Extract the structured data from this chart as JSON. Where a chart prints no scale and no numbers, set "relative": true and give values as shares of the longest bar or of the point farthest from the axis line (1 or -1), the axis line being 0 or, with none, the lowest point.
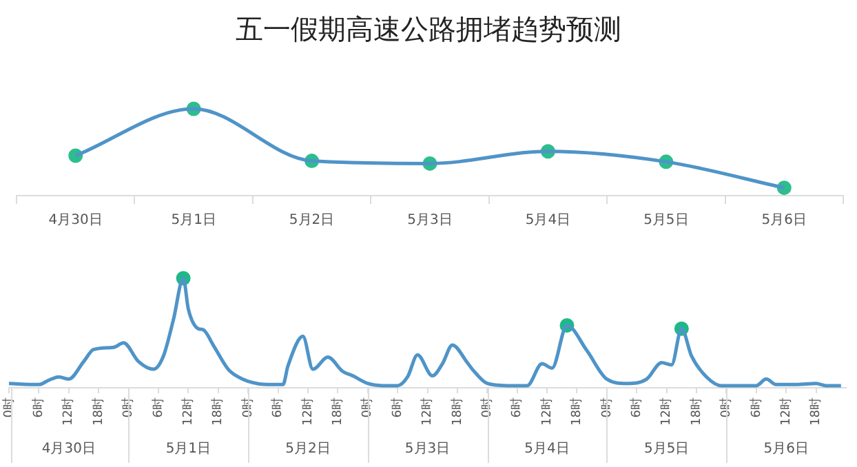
{
  "chart_data": [
    {
      "type": "line",
      "title": "五一假期高速公路拥堵趋势预测",
      "relative": true,
      "marker": "none",
      "categories": [
        "4月30日",
        "5月1日",
        "5月2日",
        "5月3日",
        "5月4日",
        "5月5日",
        "5月6日"
      ],
      "series": [
        {
          "color": "#4f94c8",
          "values": [
            0.46,
            1,
            0.4,
            0.37,
            0.51,
            0.39,
            0.09
          ]
        },
        {
          "type": "scatter",
          "marker": "circle",
          "color": "#2dbd8e",
          "x": [
            "4月30日",
            "5月1日",
            "5月2日",
            "5月3日",
            "5月4日",
            "5月5日",
            "5月6日"
          ],
          "values": [
            0.46,
            1,
            0.4,
            0.37,
            0.51,
            0.39,
            0.09
          ]
        }
      ]
    },
    {
      "type": "line",
      "relative": true,
      "marker": "none",
      "xlim": [
        "--04-30T00:00",
        "--05-07T00:00"
      ],
      "xticks": [
        {
          "value": "--04-30T00:00",
          "label": "0时"
        },
        {
          "value": "--04-30T06:00",
          "label": "6时"
        },
        {
          "value": "--04-30T12:00",
          "label": "12时"
        },
        {
          "value": "--04-30T18:00",
          "label": "18时"
        },
        {
          "value": "--05-01T00:00",
          "label": "0时"
        },
        {
          "value": "--05-01T06:00",
          "label": "6时"
        },
        {
          "value": "--05-01T12:00",
          "label": "12时"
        },
        {
          "value": "--05-01T18:00",
          "label": "18时"
        },
        {
          "value": "--05-02T00:00",
          "label": "0时"
        },
        {
          "value": "--05-02T06:00",
          "label": "6时"
        },
        {
          "value": "--05-02T12:00",
          "label": "12时"
        },
        {
          "value": "--05-02T18:00",
          "label": "18时"
        },
        {
          "value": "--05-03T00:00",
          "label": "0时"
        },
        {
          "value": "--05-03T06:00",
          "label": "6时"
        },
        {
          "value": "--05-03T12:00",
          "label": "12时"
        },
        {
          "value": "--05-03T18:00",
          "label": "18时"
        },
        {
          "value": "--05-04T00:00",
          "label": "0时"
        },
        {
          "value": "--05-04T06:00",
          "label": "6时"
        },
        {
          "value": "--05-04T12:00",
          "label": "12时"
        },
        {
          "value": "--05-04T18:00",
          "label": "18时"
        },
        {
          "value": "--05-05T00:00",
          "label": "0时"
        },
        {
          "value": "--05-05T06:00",
          "label": "6时"
        },
        {
          "value": "--05-05T12:00",
          "label": "12时"
        },
        {
          "value": "--05-05T18:00",
          "label": "18时"
        },
        {
          "value": "--05-06T00:00",
          "label": "0时"
        },
        {
          "value": "--05-06T06:00",
          "label": "6时"
        },
        {
          "value": "--05-06T12:00",
          "label": "12时"
        },
        {
          "value": "--05-06T18:00",
          "label": "18时"
        }
      ],
      "x2lim": [
        "--04-30T00:00",
        "--05-07T00:00"
      ],
      "x2ticks": [
        {
          "value": "--04-30T00:00",
          "label": null
        },
        {
          "value": "--04-30T12:00",
          "label": "4月30日"
        },
        {
          "value": "--05-01T00:00",
          "label": null
        },
        {
          "value": "--05-01T12:00",
          "label": "5月1日"
        },
        {
          "value": "--05-02T00:00",
          "label": null
        },
        {
          "value": "--05-02T12:00",
          "label": "5月2日"
        },
        {
          "value": "--05-03T00:00",
          "label": null
        },
        {
          "value": "--05-03T12:00",
          "label": "5月3日"
        },
        {
          "value": "--05-04T00:00",
          "label": null
        },
        {
          "value": "--05-04T12:00",
          "label": "5月4日"
        },
        {
          "value": "--05-05T00:00",
          "label": null
        },
        {
          "value": "--05-05T12:00",
          "label": "5月5日"
        },
        {
          "value": "--05-06T00:00",
          "label": null
        },
        {
          "value": "--05-06T12:00",
          "label": "5月6日"
        }
      ],
      "series": [
        {
          "color": "#4f94c8",
          "x": [
            "--04-30T00:00",
            "--04-30T06:00",
            "--04-30T08:00",
            "--04-30T10:00",
            "--04-30T12:00",
            "--04-30T15:00",
            "--04-30T17:00",
            "--04-30T21:00",
            "--04-30T23:00",
            "--05-01T02:00",
            "--05-01T05:00",
            "--05-01T07:00",
            "--05-01T09:00",
            "--05-01T11:00",
            "--05-01T12:00",
            "--05-01T14:00",
            "--05-01T15:00",
            "--05-01T17:00",
            "--05-01T20:00",
            "--05-01T22:00",
            "--05-02T00:00",
            "--05-02T04:00",
            "--05-02T07:00",
            "--05-02T08:00",
            "--05-02T11:00",
            "--05-02T13:00",
            "--05-02T16:00",
            "--05-02T19:00",
            "--05-02T21:00",
            "--05-03T00:00",
            "--05-03T03:00",
            "--05-03T06:00",
            "--05-03T08:00",
            "--05-03T10:00",
            "--05-03T13:00",
            "--05-03T15:00",
            "--05-03T17:00",
            "--05-03T20:00",
            "--05-03T21:00",
            "--05-04T00:00",
            "--05-04T04:00",
            "--05-04T08:00",
            "--05-04T11:00",
            "--05-04T13:00",
            "--05-04T16:00",
            "--05-04T20:00",
            "--05-05T00:00",
            "--05-05T04:00",
            "--05-05T08:00",
            "--05-05T11:00",
            "--05-05T13:00",
            "--05-05T15:00",
            "--05-05T17:00",
            "--05-05T20:00",
            "--05-05T23:00",
            "--05-06T06:00",
            "--05-06T08:00",
            "--05-06T10:00",
            "--05-06T14:00",
            "--05-06T18:00",
            "--05-06T20:00",
            "--05-06T23:00"
          ],
          "values": [
            0.04,
            0.03,
            0.07,
            0.1,
            0.08,
            0.24,
            0.35,
            0.37,
            0.41,
            0.24,
            0.17,
            0.29,
            0.62,
            1,
            0.72,
            0.54,
            0.53,
            0.39,
            0.17,
            0.1,
            0.06,
            0.03,
            0.03,
            0.2,
            0.47,
            0.17,
            0.28,
            0.15,
            0.11,
            0.04,
            0.02,
            0.02,
            0.1,
            0.3,
            0.11,
            0.22,
            0.39,
            0.23,
            0.17,
            0.04,
            0.02,
            0.02,
            0.22,
            0.18,
            0.57,
            0.34,
            0.08,
            0.04,
            0.08,
            0.23,
            0.21,
            0.54,
            0.29,
            0.1,
            0.02,
            0.02,
            0.08,
            0.03,
            0.03,
            0.04,
            0.02,
            0.02
          ]
        },
        {
          "type": "scatter",
          "marker": "circle",
          "color": "#1fb888",
          "x": [
            "--05-01T11:00",
            "--05-04T16:00",
            "--05-05T15:00"
          ],
          "values": [
            1,
            0.57,
            0.54
          ]
        }
      ]
    }
  ]
}
